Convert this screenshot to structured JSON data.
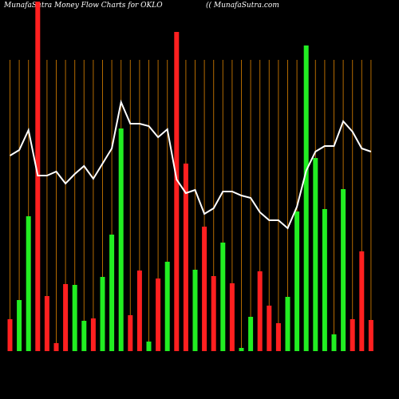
{
  "chart_data": {
    "type": "bar",
    "title": "MunafaSutra  Money Flow  Charts for OKLO",
    "subtitle": "(( MunafaSutra.com",
    "values": [
      40,
      64,
      169,
      438,
      69,
      10,
      84,
      83,
      38,
      41,
      93,
      146,
      279,
      45,
      101,
      12,
      91,
      112,
      400,
      235,
      102,
      156,
      94,
      136,
      85,
      4,
      43,
      100,
      57,
      35,
      68,
      175,
      383,
      242,
      178,
      21,
      203,
      40,
      125,
      39
    ],
    "colors": [
      "#ff2020",
      "#22ee22",
      "#22ee22",
      "#ff2020",
      "#ff2020",
      "#ff2020",
      "#ff2020",
      "#22ee22",
      "#22ee22",
      "#ff2020",
      "#22ee22",
      "#22ee22",
      "#22ee22",
      "#ff2020",
      "#ff2020",
      "#22ee22",
      "#ff2020",
      "#22ee22",
      "#ff2020",
      "#ff2020",
      "#22ee22",
      "#ff2020",
      "#ff2020",
      "#22ee22",
      "#ff2020",
      "#22ee22",
      "#22ee22",
      "#ff2020",
      "#ff2020",
      "#ff2020",
      "#22ee22",
      "#22ee22",
      "#22ee22",
      "#22ee22",
      "#22ee22",
      "#22ee22",
      "#22ee22",
      "#ff2020",
      "#ff2020",
      "#ff2020"
    ],
    "line": {
      "color": "#ffffff",
      "values": [
        245,
        252,
        277,
        220,
        220,
        225,
        210,
        222,
        232,
        216,
        235,
        254,
        312,
        285,
        285,
        282,
        268,
        278,
        215,
        198,
        202,
        172,
        179,
        200,
        200,
        195,
        192,
        174,
        164,
        164,
        154,
        181,
        226,
        250,
        257,
        257,
        288,
        275,
        254,
        250
      ]
    },
    "gridline_color": "#b36a00"
  }
}
